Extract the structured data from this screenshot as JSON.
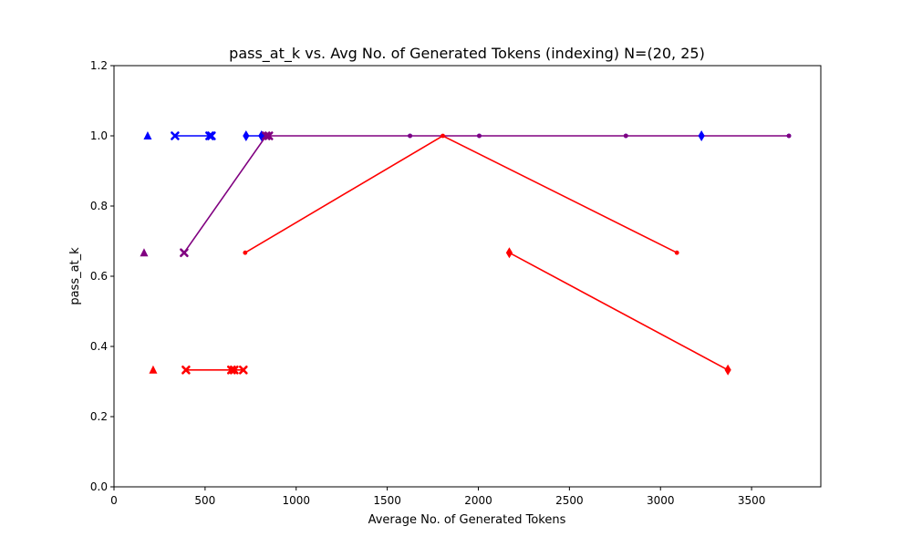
{
  "chart_data": {
    "type": "line",
    "title": "pass_at_k vs. Avg No. of Generated Tokens (indexing) N=(20, 25)",
    "xlabel": "Average No. of Generated Tokens",
    "ylabel": "pass_at_k",
    "xlim": [
      0,
      3880
    ],
    "ylim": [
      0,
      1.2
    ],
    "xticks": [
      0,
      500,
      1000,
      1500,
      2000,
      2500,
      3000,
      3500
    ],
    "xtick_labels": [
      "0",
      "500",
      "1000",
      "1500",
      "2000",
      "2500",
      "3000",
      "3500"
    ],
    "yticks": [
      0,
      0.2,
      0.4,
      0.6,
      0.8,
      1.0,
      1.2
    ],
    "ytick_labels": [
      "0.0",
      "0.2",
      "0.4",
      "0.6",
      "0.8",
      "1.0",
      "1.2"
    ],
    "grid": false,
    "series": [
      {
        "color": "#0000ff",
        "marker": "triangle",
        "line": false,
        "points": [
          [
            185,
            1.0
          ]
        ]
      },
      {
        "color": "#0000ff",
        "marker": "x",
        "line": true,
        "points": [
          [
            335,
            1.0
          ],
          [
            525,
            1.0
          ],
          [
            535,
            1.0
          ]
        ]
      },
      {
        "color": "#0000ff",
        "marker": "diamond",
        "line": true,
        "points": [
          [
            725,
            1.0
          ],
          [
            810,
            1.0
          ]
        ]
      },
      {
        "color": "#0000ff",
        "marker": "diamond",
        "line": false,
        "points": [
          [
            3225,
            1.0
          ]
        ]
      },
      {
        "color": "#0000ff",
        "marker": "dot",
        "line": false,
        "points": [
          [
            1625,
            1.0
          ],
          [
            2005,
            1.0
          ],
          [
            2810,
            1.0
          ],
          [
            3705,
            1.0
          ]
        ]
      },
      {
        "color": "#800080",
        "marker": "triangle",
        "line": false,
        "points": [
          [
            165,
            0.667
          ]
        ]
      },
      {
        "color": "#800080",
        "marker": "x",
        "line": true,
        "points": [
          [
            385,
            0.667
          ],
          [
            835,
            1.0
          ],
          [
            850,
            1.0
          ]
        ]
      },
      {
        "color": "#800080",
        "marker": "dot",
        "line": true,
        "points": [
          [
            850,
            1.0
          ],
          [
            1625,
            1.0
          ],
          [
            2005,
            1.0
          ],
          [
            2810,
            1.0
          ],
          [
            3705,
            1.0
          ]
        ]
      },
      {
        "color": "#ff0000",
        "marker": "triangle",
        "line": false,
        "points": [
          [
            215,
            0.333
          ]
        ]
      },
      {
        "color": "#ff0000",
        "marker": "x",
        "line": true,
        "points": [
          [
            395,
            0.333
          ],
          [
            645,
            0.333
          ],
          [
            660,
            0.333
          ],
          [
            710,
            0.333
          ]
        ]
      },
      {
        "color": "#ff0000",
        "marker": "dot",
        "line": true,
        "points": [
          [
            720,
            0.667
          ],
          [
            1805,
            1.0
          ],
          [
            3090,
            0.667
          ]
        ]
      },
      {
        "color": "#ff0000",
        "marker": "diamond",
        "line": true,
        "points": [
          [
            2170,
            0.667
          ],
          [
            3370,
            0.333
          ]
        ]
      }
    ]
  }
}
